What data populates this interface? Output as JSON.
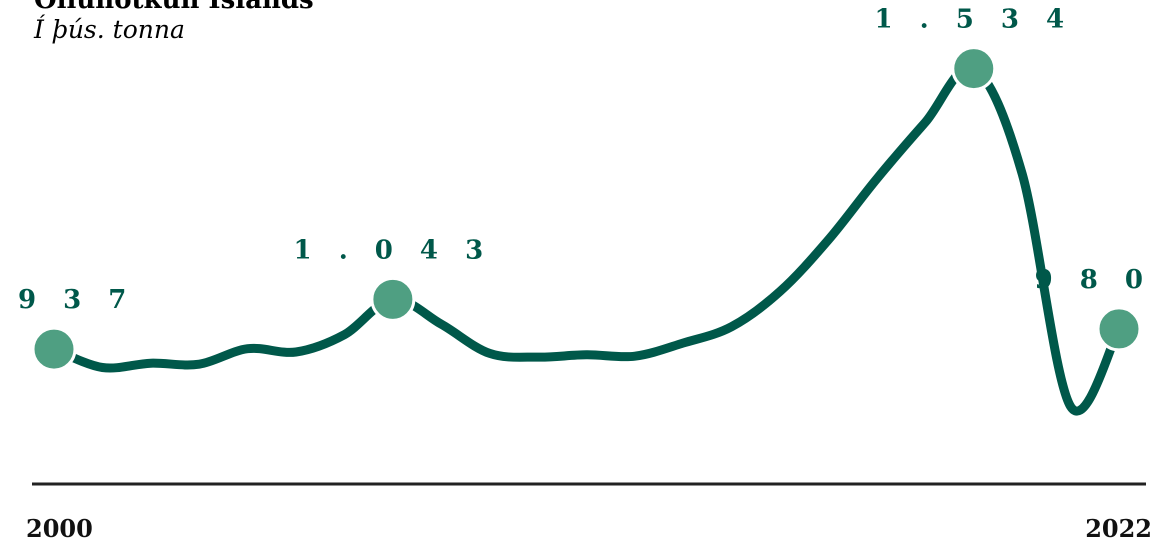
{
  "chart_data": {
    "type": "line",
    "title": "Olíunotkun Íslands",
    "subtitle": "Í þús. tonna",
    "x": [
      2000,
      2001,
      2002,
      2003,
      2004,
      2005,
      2006,
      2007,
      2008,
      2009,
      2010,
      2011,
      2012,
      2013,
      2014,
      2015,
      2016,
      2017,
      2018,
      2019,
      2020,
      2021,
      2022
    ],
    "series": [
      {
        "values": [
          937,
          898,
          907,
          905,
          938,
          931,
          968,
          1043,
          990,
          928,
          920,
          925,
          922,
          950,
          985,
          1060,
          1170,
          1300,
          1420,
          1534,
          1310,
          815,
          980
        ]
      }
    ],
    "labeled_points": [
      {
        "year": 2000,
        "value": 937,
        "label": "9 3 7"
      },
      {
        "year": 2007,
        "value": 1043,
        "label": "1 . 0 4 3"
      },
      {
        "year": 2019,
        "value": 1534,
        "label": "1 . 5 3 4"
      },
      {
        "year": 2022,
        "value": 980,
        "label": "9 8 0"
      }
    ],
    "x_tick_labels": [
      "2000",
      "2022"
    ],
    "ylim": [
      650,
      1680
    ],
    "grid": false,
    "colors": {
      "line": "#00584a",
      "marker": "#4f9f82",
      "marker_outline": "#ffffff",
      "label": "#00584a",
      "baseline": "#222222"
    }
  }
}
